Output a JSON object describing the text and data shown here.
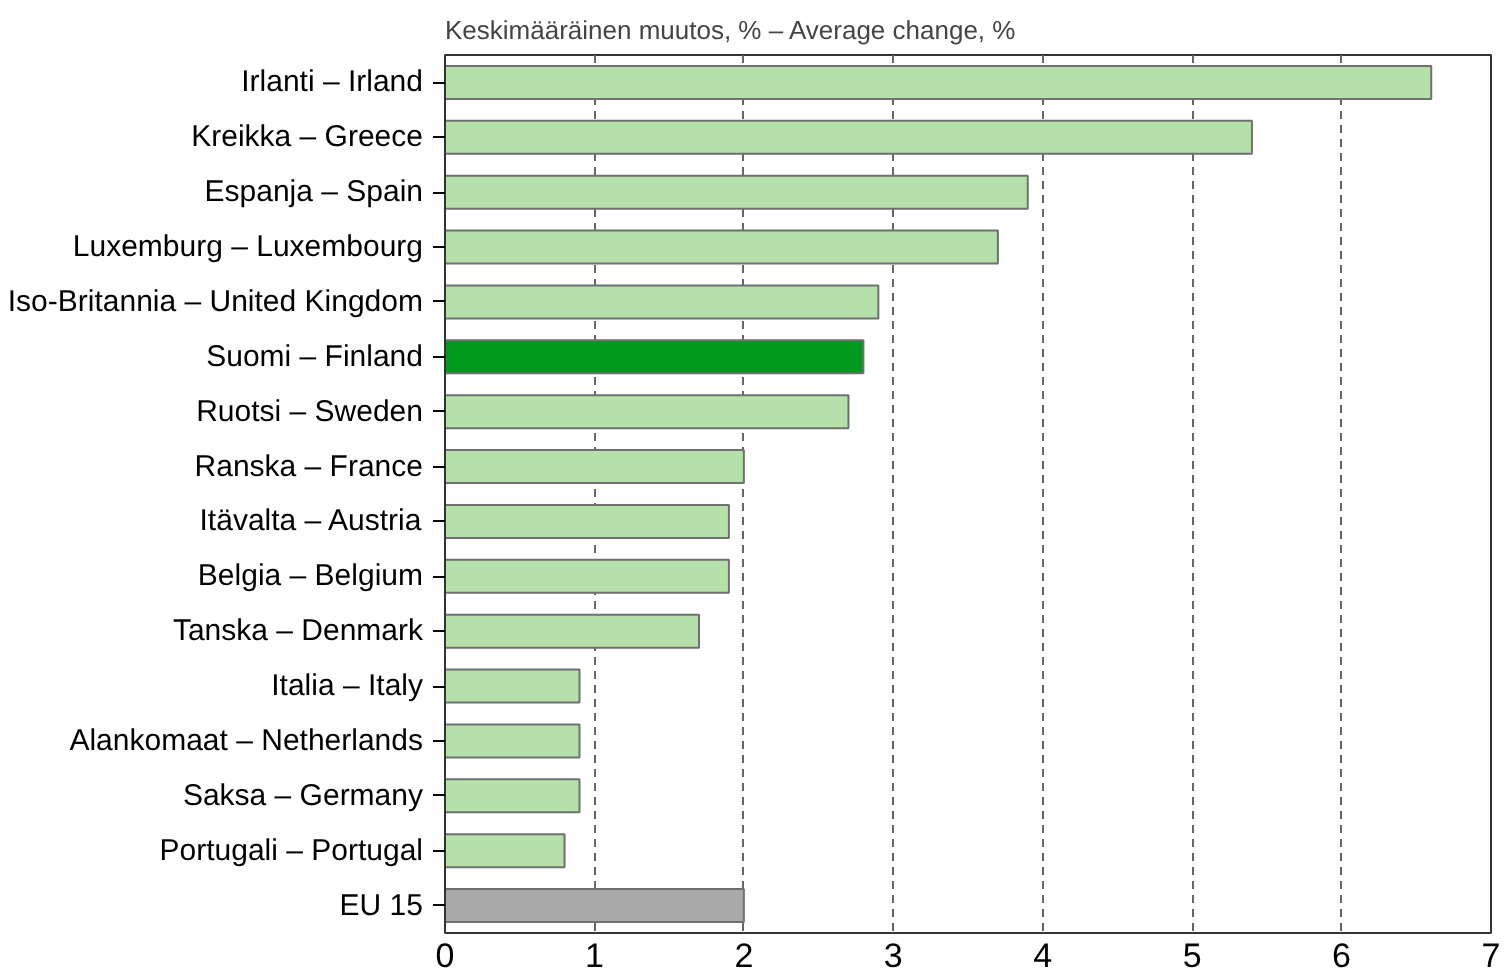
{
  "chart_data": {
    "type": "bar",
    "orientation": "horizontal",
    "title": "Keskimääräinen muutos, % – Average change, %",
    "categories": [
      "Irlanti – Irland",
      "Kreikka – Greece",
      "Espanja – Spain",
      "Luxemburg – Luxembourg",
      "Iso-Britannia – United Kingdom",
      "Suomi – Finland",
      "Ruotsi – Sweden",
      "Ranska – France",
      "Itävalta – Austria",
      "Belgia – Belgium",
      "Tanska – Denmark",
      "Italia – Italy",
      "Alankomaat – Netherlands",
      "Saksa – Germany",
      "Portugali – Portugal",
      "EU 15"
    ],
    "values": [
      6.6,
      5.4,
      3.9,
      3.7,
      2.9,
      2.8,
      2.7,
      2.0,
      1.9,
      1.9,
      1.7,
      0.9,
      0.9,
      0.9,
      0.8,
      2.0
    ],
    "colors": [
      "#b5e0aa",
      "#b5e0aa",
      "#b5e0aa",
      "#b5e0aa",
      "#b5e0aa",
      "#009a1e",
      "#b5e0aa",
      "#b5e0aa",
      "#b5e0aa",
      "#b5e0aa",
      "#b5e0aa",
      "#b5e0aa",
      "#b5e0aa",
      "#b5e0aa",
      "#b5e0aa",
      "#a9a9a9"
    ],
    "xlim": [
      0,
      7
    ],
    "xticks": [
      0,
      1,
      2,
      3,
      4,
      5,
      6,
      7
    ],
    "grid": "x"
  }
}
